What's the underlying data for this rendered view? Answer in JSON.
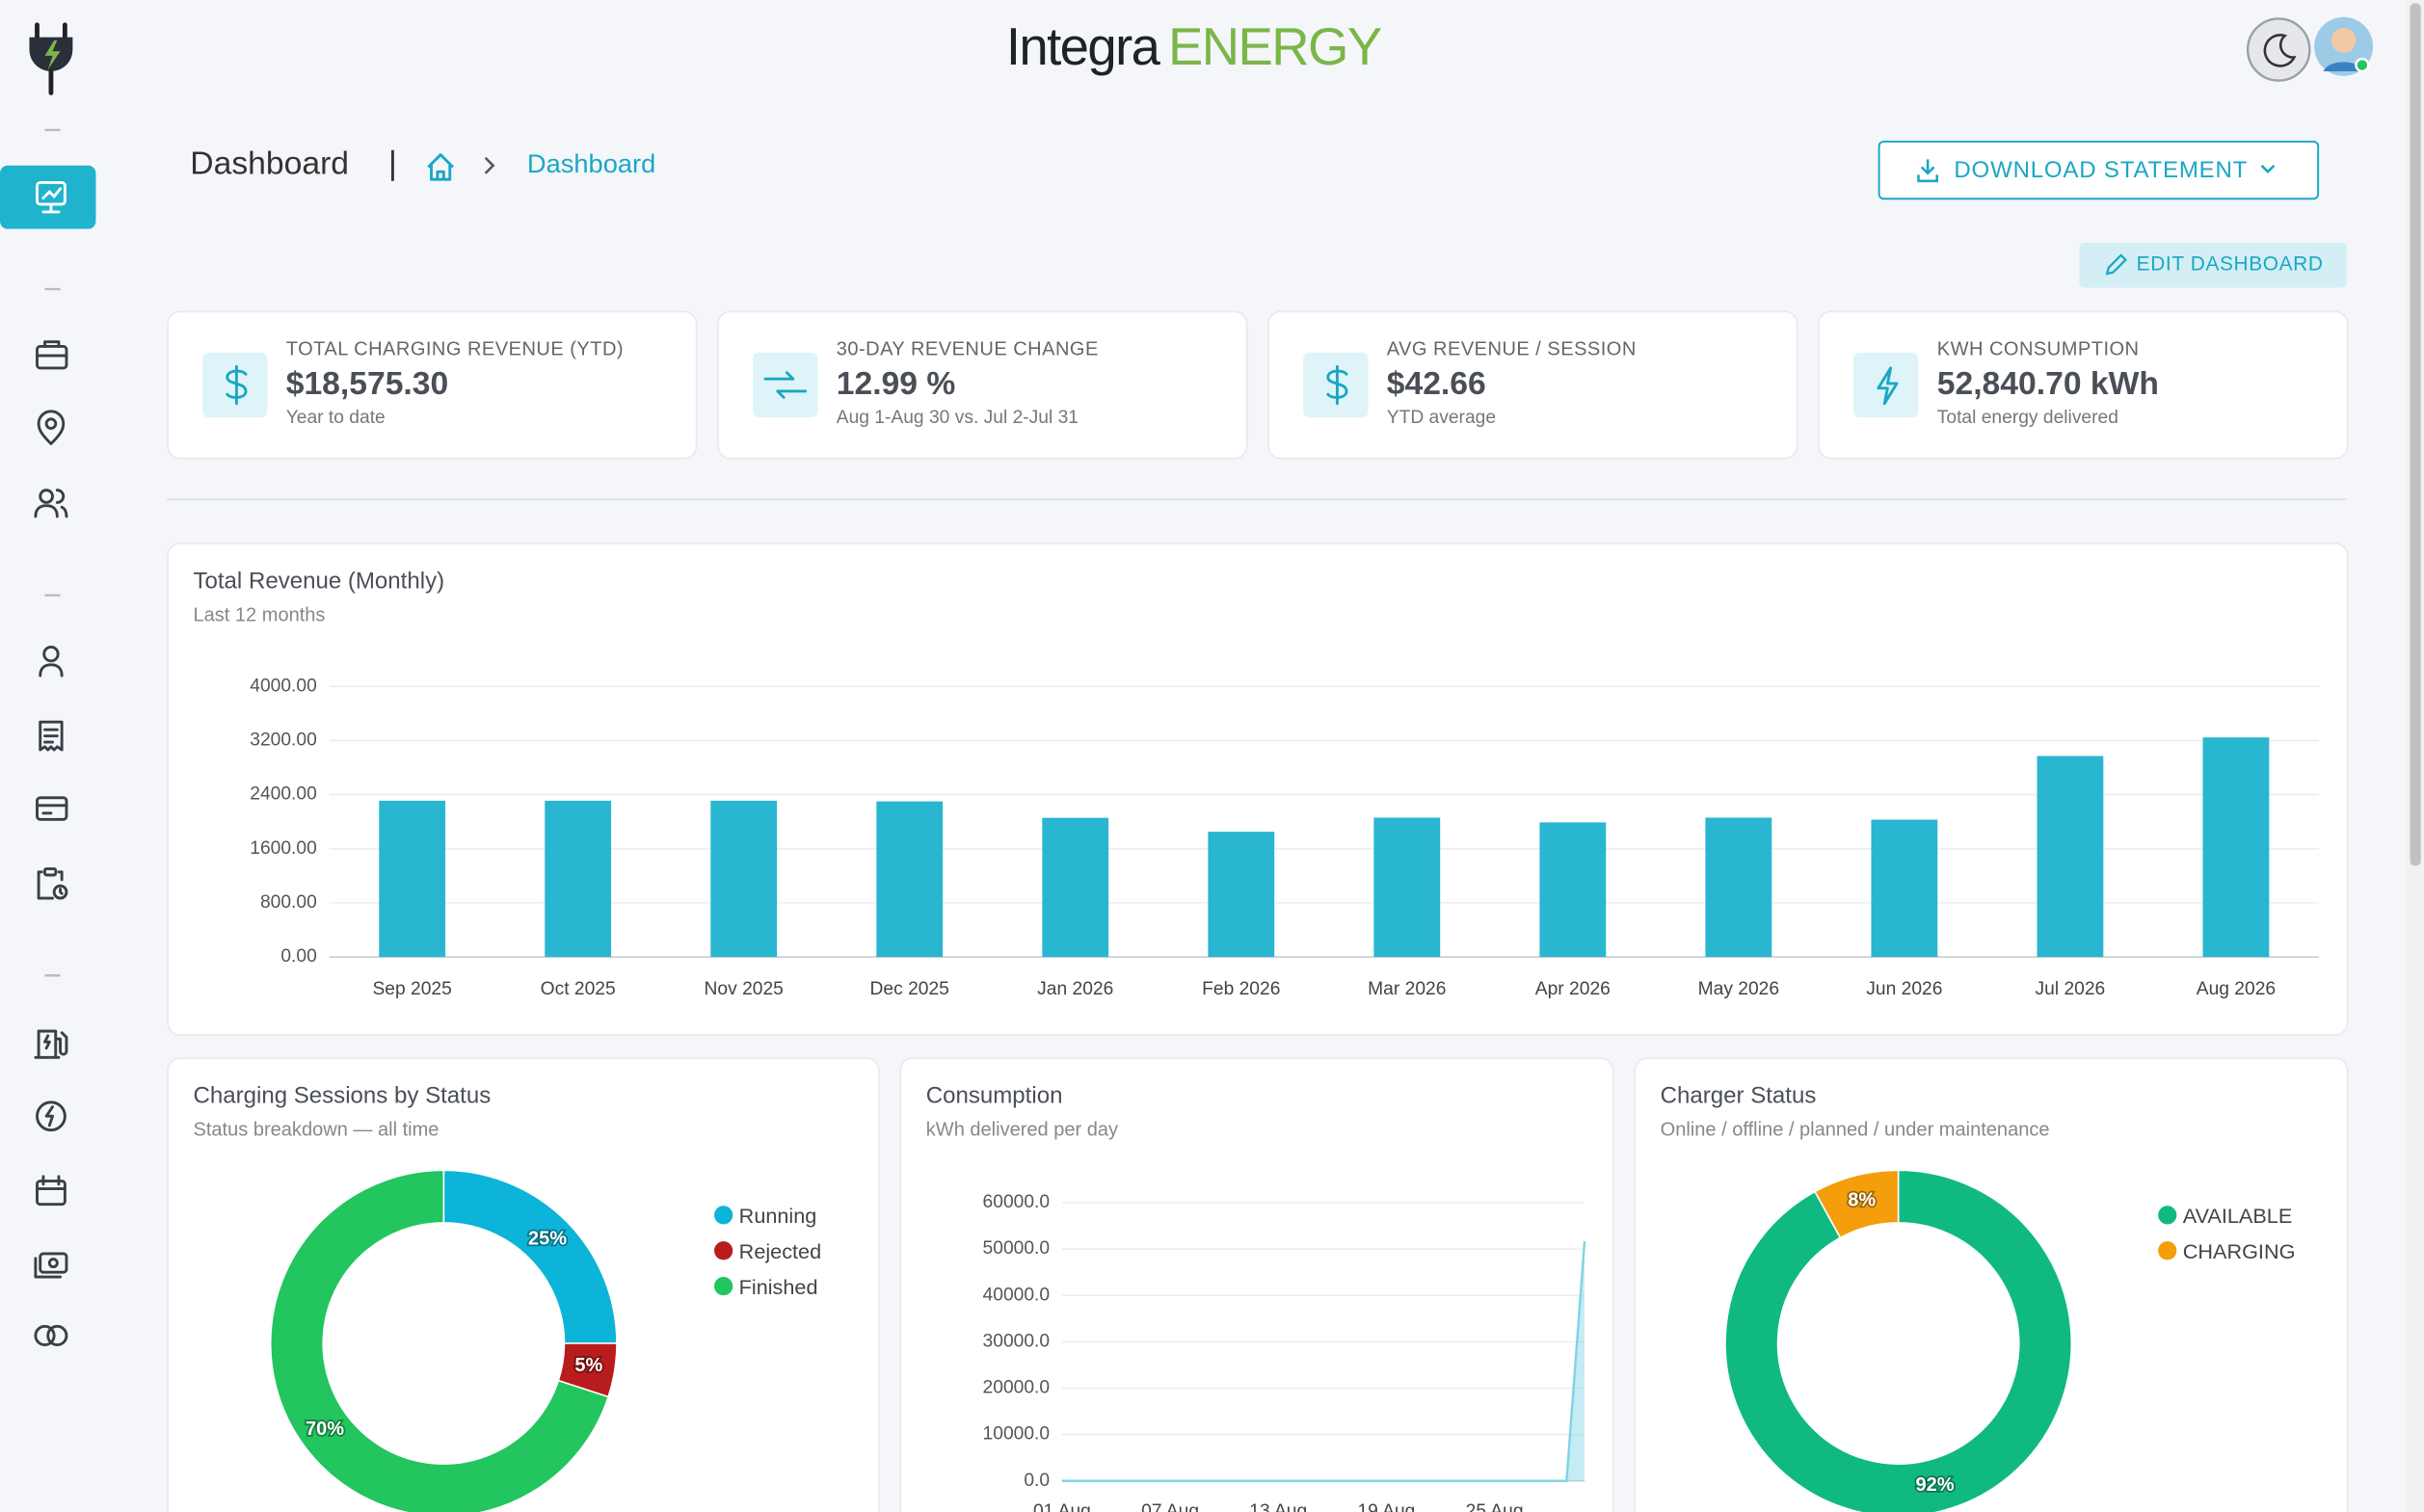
{
  "header": {
    "logo_left": "Integra",
    "logo_right": "ENERGY"
  },
  "breadcrumb": {
    "title": "Dashboard",
    "current": "Dashboard"
  },
  "buttons": {
    "download": "DOWNLOAD STATEMENT",
    "edit": "EDIT DASHBOARD"
  },
  "kpis": [
    {
      "label": "TOTAL CHARGING REVENUE (YTD)",
      "value": "$18,575.30",
      "sub": "Year to date"
    },
    {
      "label": "30-DAY REVENUE CHANGE",
      "value": "12.99 %",
      "sub": "Aug 1-Aug 30 vs. Jul 2-Jul 31"
    },
    {
      "label": "AVG REVENUE / SESSION",
      "value": "$42.66",
      "sub": "YTD average"
    },
    {
      "label": "KWH CONSUMPTION",
      "value": "52,840.70 kWh",
      "sub": "Total energy delivered"
    }
  ],
  "chart_data": [
    {
      "type": "bar",
      "title": "Total Revenue (Monthly)",
      "subtitle": "Last 12 months",
      "categories": [
        "Sep 2025",
        "Oct 2025",
        "Nov 2025",
        "Dec 2025",
        "Jan 2026",
        "Feb 2026",
        "Mar 2026",
        "Apr 2026",
        "May 2026",
        "Jun 2026",
        "Jul 2026",
        "Aug 2026"
      ],
      "values": [
        2310,
        2310,
        2310,
        2300,
        2057,
        1851,
        2060,
        1990,
        2060,
        2030,
        2971,
        3246
      ],
      "color": "#29b6d0",
      "ylim": [
        0,
        4000
      ],
      "yticks": [
        {
          "value": 0,
          "label": "0.00"
        },
        {
          "value": 800,
          "label": "800.00"
        },
        {
          "value": 1600,
          "label": "1600.00"
        },
        {
          "value": 2400,
          "label": "2400.00"
        },
        {
          "value": 3200,
          "label": "3200.00"
        },
        {
          "value": 4000,
          "label": "4000.00"
        }
      ],
      "grid": true
    },
    {
      "type": "pie",
      "donut": true,
      "title": "Charging Sessions by Status",
      "subtitle": "Status breakdown — all time",
      "categories": [
        "Running",
        "Rejected",
        "Finished"
      ],
      "values": [
        25,
        5,
        70
      ],
      "value_labels": [
        "25%",
        "5%",
        "70%"
      ],
      "colors": [
        "#0bb4d8",
        "#b91c1c",
        "#22c55e"
      ],
      "legend": "top-right"
    },
    {
      "type": "area",
      "title": "Consumption",
      "subtitle": "kWh delivered per day",
      "categories": [
        "01 Aug",
        null,
        null,
        null,
        null,
        null,
        "07 Aug",
        null,
        null,
        null,
        null,
        null,
        "13 Aug",
        null,
        null,
        null,
        null,
        null,
        "19 Aug",
        null,
        null,
        null,
        null,
        null,
        "25 Aug",
        null,
        null,
        null,
        null,
        null
      ],
      "values": [
        0,
        0,
        0,
        0,
        0,
        0,
        0,
        0,
        0,
        0,
        0,
        0,
        0,
        0,
        0,
        0,
        0,
        0,
        0,
        0,
        0,
        0,
        0,
        0,
        0,
        0,
        0,
        0,
        0,
        51700
      ],
      "color": "#7fd3e6",
      "ylim": [
        0,
        60000
      ],
      "yticks": [
        {
          "value": 0,
          "label": "0.0"
        },
        {
          "value": 10000,
          "label": "10000.0"
        },
        {
          "value": 20000,
          "label": "20000.0"
        },
        {
          "value": 30000,
          "label": "30000.0"
        },
        {
          "value": 40000,
          "label": "40000.0"
        },
        {
          "value": 50000,
          "label": "50000.0"
        },
        {
          "value": 60000,
          "label": "60000.0"
        }
      ],
      "grid": true
    },
    {
      "type": "pie",
      "donut": true,
      "title": "Charger Status",
      "subtitle": "Online / offline / planned / under maintenance",
      "categories": [
        "AVAILABLE",
        "CHARGING"
      ],
      "values": [
        92,
        8
      ],
      "value_labels": [
        "92%",
        "8%"
      ],
      "colors": [
        "#10b981",
        "#f59e0b"
      ],
      "legend": "top-right"
    }
  ]
}
